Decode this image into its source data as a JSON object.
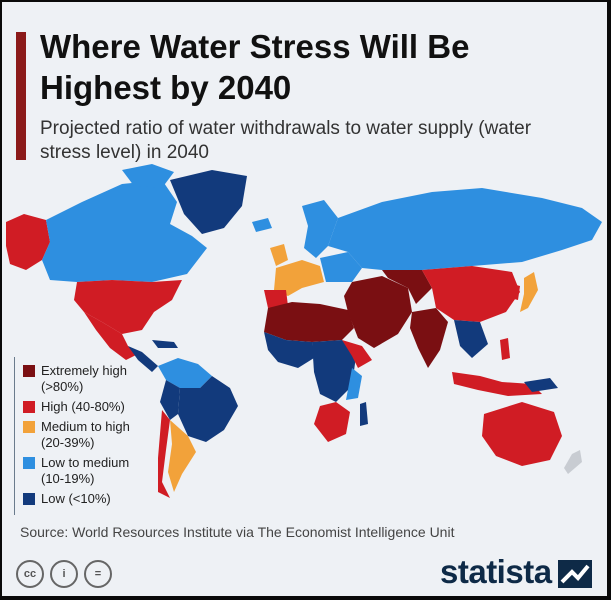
{
  "title": "Where Water Stress Will Be Highest by 2040",
  "subtitle": "Projected ratio of water withdrawals to water supply (water stress level) in 2040",
  "legend": [
    {
      "label": "Extremely high",
      "range": "(>80%)",
      "color": "#7a0f12"
    },
    {
      "label": "High (40-80%)",
      "range": "",
      "color": "#d01c24"
    },
    {
      "label": "Medium to high",
      "range": "(20-39%)",
      "color": "#f2a23a"
    },
    {
      "label": "Low to medium",
      "range": "(10-19%)",
      "color": "#2e8fe0"
    },
    {
      "label": "Low (<10%)",
      "range": "",
      "color": "#123a7c"
    }
  ],
  "source": "Source: World Resources Institute via The Economist Intelligence Unit",
  "footer": {
    "brand": "statista",
    "license_icons": [
      "cc",
      "i",
      "="
    ]
  },
  "colors": {
    "accent_bar": "#8b1a1a",
    "background": "#eef1f5"
  }
}
